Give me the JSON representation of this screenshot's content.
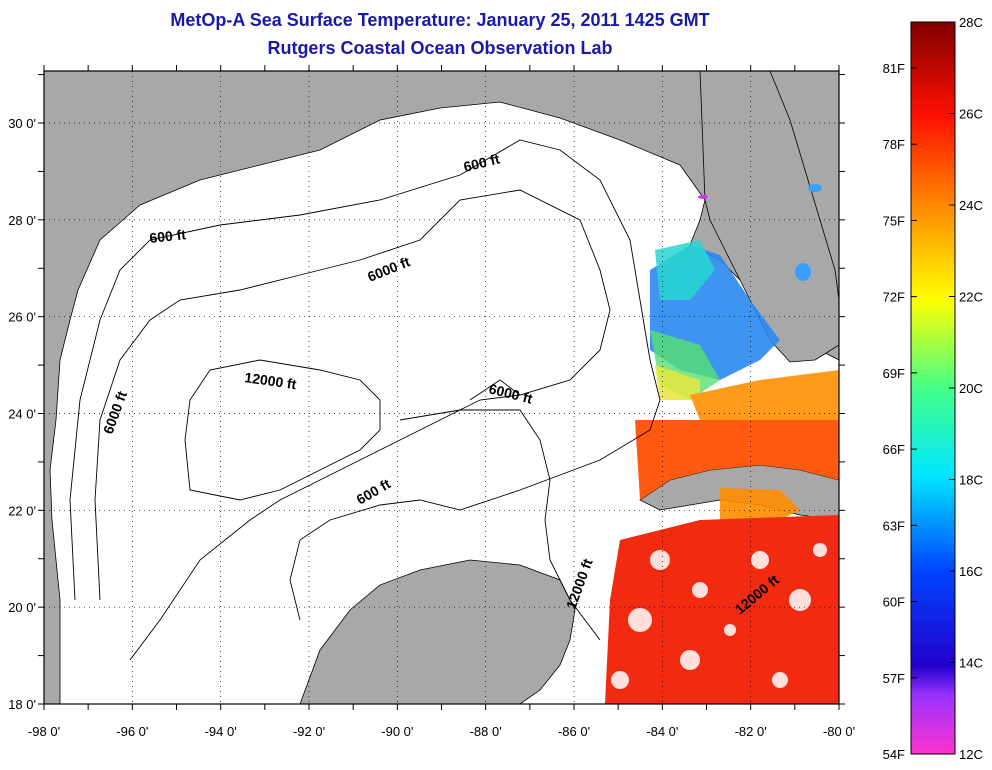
{
  "title_line1": "MetOp-A Sea Surface Temperature:  January 25, 2011 1425 GMT",
  "title_line2": "Rutgers Coastal Ocean Observation Lab",
  "map": {
    "lon_ticks": [
      "-98 0'",
      "-96 0'",
      "-94 0'",
      "-92 0'",
      "-90 0'",
      "-88 0'",
      "-86 0'",
      "-84 0'",
      "-82 0'",
      "-80 0'"
    ],
    "lat_ticks": [
      "30 0'",
      "28 0'",
      "26 0'",
      "24 0'",
      "22 0'",
      "20 0'",
      "18 0'"
    ],
    "contour_labels": [
      "600 ft",
      "600 ft",
      "600 ft",
      "6000 ft",
      "6000 ft",
      "6000 ft",
      "12000 ft",
      "12000 ft",
      "12000 ft"
    ],
    "colors": {
      "land": "#a8a8a8",
      "ocean": "#ffffff",
      "contour": "#000000",
      "title": "#1a1aa6"
    }
  },
  "colorbar": {
    "celsius_labels": [
      "28C",
      "26C",
      "24C",
      "22C",
      "20C",
      "18C",
      "16C",
      "14C",
      "12C"
    ],
    "fahrenheit_labels": [
      "81F",
      "78F",
      "75F",
      "72F",
      "69F",
      "66F",
      "63F",
      "60F",
      "57F",
      "54F"
    ],
    "range_c": [
      12,
      28
    ]
  }
}
